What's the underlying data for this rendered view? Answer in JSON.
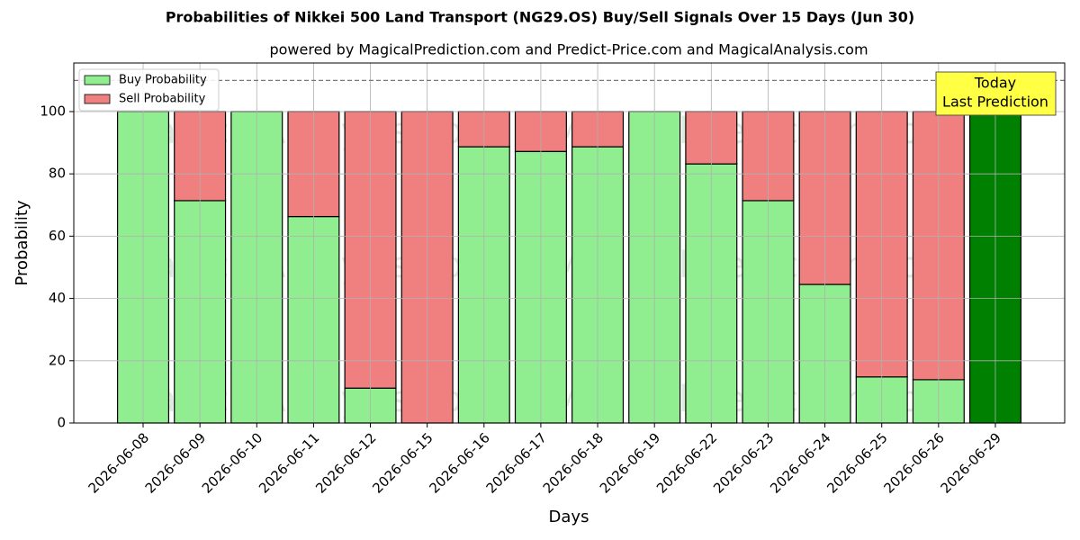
{
  "chart_data": {
    "type": "stacked_bar",
    "title": "Probabilities of Nikkei 500 Land Transport (NG29.OS) Buy/Sell Signals Over 15 Days (Jun 30)",
    "subtitle": "powered by MagicalPrediction.com and Predict-Price.com and MagicalAnalysis.com",
    "x_label": "Days",
    "y_label": "Probability",
    "categories": [
      "2026-06-08",
      "2026-06-09",
      "2026-06-10",
      "2026-06-11",
      "2026-06-12",
      "2026-06-15",
      "2026-06-16",
      "2026-06-17",
      "2026-06-18",
      "2026-06-19",
      "2026-06-22",
      "2026-06-23",
      "2026-06-24",
      "2026-06-25",
      "2026-06-26",
      "2026-06-29"
    ],
    "series": [
      {
        "name": "Buy Probability",
        "color": "#90ee90",
        "colors": [
          "#90ee90",
          "#90ee90",
          "#90ee90",
          "#90ee90",
          "#90ee90",
          "#90ee90",
          "#90ee90",
          "#90ee90",
          "#90ee90",
          "#90ee90",
          "#90ee90",
          "#90ee90",
          "#90ee90",
          "#90ee90",
          "#90ee90",
          "#008000"
        ],
        "values": [
          100,
          71.4,
          100,
          66.3,
          11.2,
          0,
          88.7,
          87.2,
          88.7,
          100,
          83.2,
          71.4,
          44.5,
          14.8,
          13.9,
          100
        ]
      },
      {
        "name": "Sell Probability",
        "color": "#f08080",
        "values": [
          0,
          28.6,
          0,
          33.7,
          88.8,
          100,
          11.3,
          12.8,
          11.3,
          0,
          16.8,
          28.6,
          55.5,
          85.2,
          86.1,
          0
        ]
      }
    ],
    "ylim": [
      0,
      115.6
    ],
    "yticks": [
      0,
      20,
      40,
      60,
      80,
      100
    ],
    "reference_line": 110,
    "grid": true,
    "legend": "upper-left",
    "annotation": [
      "Today",
      "Last Prediction"
    ],
    "watermarks": [
      "MagicalAnalysis.com",
      "MagicalPrediction.com"
    ]
  }
}
